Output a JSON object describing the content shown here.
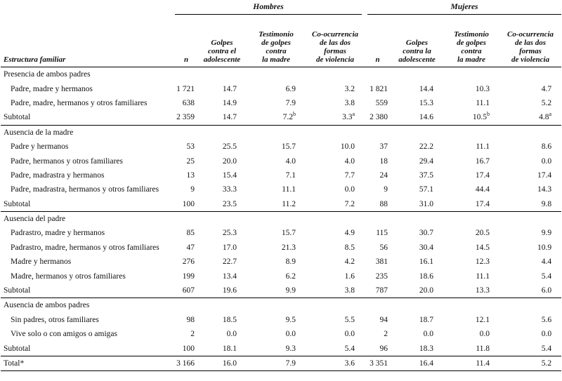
{
  "table": {
    "groups": [
      "Hombres",
      "Mujeres"
    ],
    "columns": [
      "Estructura familiar",
      "n",
      "Golpes\ncontra el\nadolescente",
      "Testimonio\nde golpes\ncontra\nla madre",
      "Co-ocurrencia\nde las dos\nformas\nde violencia",
      "n",
      "Golpes\ncontra la\nadolescente",
      "Testimonio\nde golpes\ncontra\nla madre",
      "Co-ocurrencia\nde las dos\nformas\nde violencia"
    ],
    "sections": [
      {
        "title": "Presencia de ambos padres",
        "rows": [
          {
            "label": "Padre, madre y hermanos",
            "cells": [
              "1 721",
              "14.7",
              "6.9",
              "3.2",
              "1 821",
              "14.4",
              "10.3",
              "4.7"
            ]
          },
          {
            "label": "Padre, madre, hermanos y otros familiares",
            "cells": [
              "638",
              "14.9",
              "7.9",
              "3.8",
              "559",
              "15.3",
              "11.1",
              "5.2"
            ]
          }
        ],
        "subtotal": {
          "label": "Subtotal",
          "cells": [
            "2 359",
            "14.7",
            {
              "text": "7.2",
              "sup": "b"
            },
            {
              "text": "3.3",
              "sup": "a"
            },
            "2 380",
            "14.6",
            {
              "text": "10.5",
              "sup": "b"
            },
            {
              "text": "4.8",
              "sup": "a"
            }
          ]
        }
      },
      {
        "title": "Ausencia de la madre",
        "rows": [
          {
            "label": "Padre y hermanos",
            "cells": [
              "53",
              "25.5",
              "15.7",
              "10.0",
              "37",
              "22.2",
              "11.1",
              "8.6"
            ]
          },
          {
            "label": "Padre, hermanos y otros familiares",
            "cells": [
              "25",
              "20.0",
              "4.0",
              "4.0",
              "18",
              "29.4",
              "16.7",
              "0.0"
            ]
          },
          {
            "label": "Padre, madrastra y hermanos",
            "cells": [
              "13",
              "15.4",
              "7.1",
              "7.7",
              "24",
              "37.5",
              "17.4",
              "17.4"
            ]
          },
          {
            "label": "Padre, madrastra, hermanos y otros familiares",
            "cells": [
              "9",
              "33.3",
              "11.1",
              "0.0",
              "9",
              "57.1",
              "44.4",
              "14.3"
            ]
          }
        ],
        "subtotal": {
          "label": "Subtotal",
          "cells": [
            "100",
            "23.5",
            "11.2",
            "7.2",
            "88",
            "31.0",
            "17.4",
            "9.8"
          ]
        }
      },
      {
        "title": "Ausencia del padre",
        "rows": [
          {
            "label": "Padrastro, madre y hermanos",
            "cells": [
              "85",
              "25.3",
              "15.7",
              "4.9",
              "115",
              "30.7",
              "20.5",
              "9.9"
            ]
          },
          {
            "label": "Padrastro, madre, hermanos y otros familiares",
            "cells": [
              "47",
              "17.0",
              "21.3",
              "8.5",
              "56",
              "30.4",
              "14.5",
              "10.9"
            ]
          },
          {
            "label": "Madre y hermanos",
            "cells": [
              "276",
              "22.7",
              "8.9",
              "4.2",
              "381",
              "16.1",
              "12.3",
              "4.4"
            ]
          },
          {
            "label": "Madre, hermanos y otros familiares",
            "cells": [
              "199",
              "13.4",
              "6.2",
              "1.6",
              "235",
              "18.6",
              "11.1",
              "5.4"
            ]
          }
        ],
        "subtotal": {
          "label": "Subtotal",
          "cells": [
            "607",
            "19.6",
            "9.9",
            "3.8",
            "787",
            "20.0",
            "13.3",
            "6.0"
          ]
        }
      },
      {
        "title": "Ausencia de ambos padres",
        "rows": [
          {
            "label": "Sin padres, otros familiares",
            "cells": [
              "98",
              "18.5",
              "9.5",
              "5.5",
              "94",
              "18.7",
              "12.1",
              "5.6"
            ]
          },
          {
            "label": "Vive solo o con amigos o amigas",
            "cells": [
              "2",
              "0.0",
              "0.0",
              "0.0",
              "2",
              "0.0",
              "0.0",
              "0.0"
            ]
          }
        ],
        "subtotal": {
          "label": "Subtotal",
          "cells": [
            "100",
            "18.1",
            "9.3",
            "5.4",
            "96",
            "18.3",
            "11.8",
            "5.4"
          ]
        }
      }
    ],
    "total": {
      "label": "Total*",
      "cells": [
        "3 166",
        "16.0",
        "7.9",
        "3.6",
        "3 351",
        "16.4",
        "11.4",
        "5.2"
      ]
    }
  }
}
